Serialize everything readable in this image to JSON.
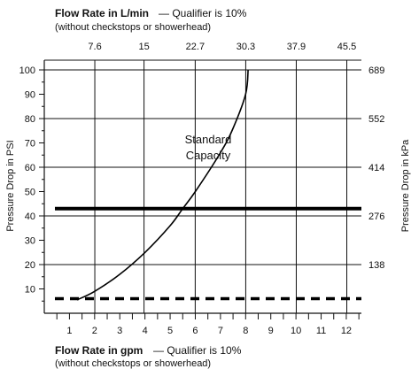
{
  "chart_data": {
    "type": "line",
    "top_axis": {
      "title_bold": "Flow Rate in L/min",
      "title_rest": " — Qualifier is 10%",
      "subtitle": "(without checkstops or showerhead)",
      "ticks": [
        "7.6",
        "15",
        "22.7",
        "30.3",
        "37.9",
        "45.5"
      ],
      "values": [
        7.6,
        15,
        22.7,
        30.3,
        37.9,
        45.5
      ]
    },
    "bottom_axis": {
      "title_bold": "Flow Rate in gpm",
      "title_rest": " — Qualifier is 10%",
      "subtitle": "(without checkstops or showerhead)",
      "ticks": [
        "1",
        "2",
        "3",
        "4",
        "5",
        "6",
        "7",
        "8",
        "9",
        "10",
        "11",
        "12"
      ],
      "xlim": [
        0,
        12.6
      ]
    },
    "left_axis": {
      "label": "Pressure Drop in PSI",
      "ticks": [
        "10",
        "20",
        "30",
        "40",
        "50",
        "60",
        "70",
        "80",
        "90",
        "100"
      ],
      "ylim": [
        0,
        104
      ]
    },
    "right_axis": {
      "label": "Pressure Drop in kPa",
      "ticks": [
        "138",
        "276",
        "414",
        "552",
        "689"
      ],
      "values_psi": [
        20,
        40,
        60,
        80,
        100
      ]
    },
    "curve": {
      "name": "Standard Capacity",
      "label_lines": [
        "Standard",
        "Capacity"
      ],
      "x": [
        1.3,
        2,
        3,
        4,
        5,
        5.5,
        6,
        7,
        7.5,
        8,
        8.1
      ],
      "y": [
        5.5,
        9,
        16,
        25,
        36,
        43,
        50,
        66,
        76,
        90,
        100
      ]
    },
    "reference_lines": [
      {
        "y": 43,
        "style": "solid"
      },
      {
        "y": 6,
        "style": "dashed"
      }
    ],
    "grid": true
  }
}
